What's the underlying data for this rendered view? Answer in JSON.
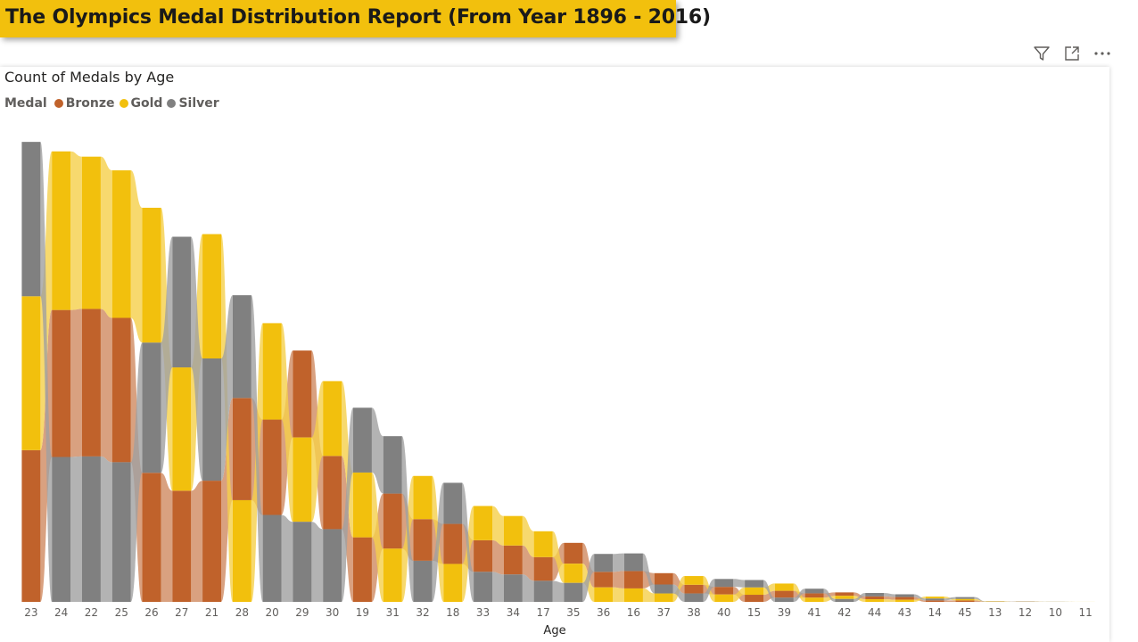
{
  "report": {
    "title": "The Olympics Medal Distribution Report (From Year 1896 - 2016)"
  },
  "header_icons": [
    "filter-icon",
    "focus-mode-icon",
    "more-options-icon"
  ],
  "chart_data": {
    "type": "ribbon",
    "title": "Count of Medals by Age",
    "legend_title": "Medal",
    "legend_position": "top-left",
    "xlabel": "Age",
    "ylabel": "",
    "grid": false,
    "categories": [
      "23",
      "24",
      "22",
      "25",
      "26",
      "27",
      "21",
      "28",
      "20",
      "29",
      "30",
      "19",
      "31",
      "32",
      "18",
      "33",
      "34",
      "17",
      "35",
      "36",
      "16",
      "37",
      "38",
      "40",
      "15",
      "39",
      "41",
      "42",
      "44",
      "43",
      "14",
      "45",
      "13",
      "12",
      "10",
      "11"
    ],
    "series": [
      {
        "name": "Bronze",
        "color": "#c0622b",
        "values": [
          2880,
          2790,
          2800,
          2740,
          2450,
          2110,
          2300,
          1940,
          1810,
          1650,
          1390,
          1225,
          1045,
          790,
          760,
          600,
          550,
          450,
          395,
          295,
          330,
          215,
          165,
          145,
          135,
          130,
          82,
          65,
          55,
          52,
          28,
          28,
          3,
          3,
          0,
          0
        ]
      },
      {
        "name": "Gold",
        "color": "#f2c00d",
        "values": [
          2920,
          3010,
          2890,
          2800,
          2560,
          2340,
          2360,
          1930,
          1830,
          1600,
          1420,
          1230,
          1010,
          820,
          720,
          650,
          560,
          490,
          365,
          275,
          255,
          160,
          165,
          140,
          140,
          138,
          80,
          60,
          50,
          40,
          37,
          28,
          7,
          3,
          2,
          1
        ]
      },
      {
        "name": "Silver",
        "color": "#808080",
        "values": [
          2930,
          2750,
          2760,
          2650,
          2470,
          2480,
          2320,
          1950,
          1650,
          1520,
          1380,
          1230,
          1090,
          780,
          780,
          570,
          520,
          400,
          360,
          340,
          335,
          170,
          160,
          150,
          140,
          80,
          88,
          55,
          64,
          52,
          35,
          35,
          3,
          4,
          2,
          0
        ]
      }
    ],
    "y_max": 8800
  }
}
